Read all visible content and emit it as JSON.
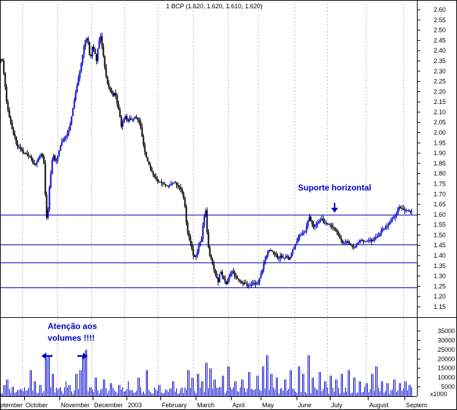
{
  "chart_data": {
    "type": "candlestick",
    "title": "1 BCP (1.620, 1.620, 1.610, 1.620)",
    "price_axis": {
      "ticks": [
        "2.60",
        "2.55",
        "2.50",
        "2.45",
        "2.40",
        "2.35",
        "2.30",
        "2.25",
        "2.20",
        "2.15",
        "2.10",
        "2.05",
        "2.00",
        "1.95",
        "1.90",
        "1.85",
        "1.80",
        "1.75",
        "1.70",
        "1.65",
        "1.60",
        "1.55",
        "1.50",
        "1.45",
        "1.40",
        "1.35",
        "1.30",
        "1.25",
        "1.20",
        "1.15"
      ],
      "range": [
        1.125,
        2.625
      ]
    },
    "volume_axis": {
      "ticks": [
        "35000",
        "30000",
        "25000",
        "20000",
        "15000",
        "10000",
        "5000"
      ],
      "unit_label": "x1000",
      "range": [
        0,
        40000
      ]
    },
    "time_axis": {
      "labels": [
        "ptember",
        "October",
        "November",
        "December",
        "2003",
        "February",
        "March",
        "April",
        "May",
        "June",
        "July",
        "August",
        "Septem"
      ]
    },
    "horizontal_levels": [
      1.6,
      1.455,
      1.365,
      1.245
    ],
    "price_path": [
      [
        0,
        2.36
      ],
      [
        3,
        2.35
      ],
      [
        6,
        2.26
      ],
      [
        9,
        2.15
      ],
      [
        12,
        2.09
      ],
      [
        15,
        2.05
      ],
      [
        18,
        2.0
      ],
      [
        21,
        1.98
      ],
      [
        24,
        1.93
      ],
      [
        27,
        1.93
      ],
      [
        30,
        1.92
      ],
      [
        33,
        1.9
      ],
      [
        36,
        1.9
      ],
      [
        40,
        1.89
      ],
      [
        44,
        1.88
      ],
      [
        48,
        1.84
      ],
      [
        52,
        1.85
      ],
      [
        56,
        1.88
      ],
      [
        60,
        1.9
      ],
      [
        63,
        1.85
      ],
      [
        66,
        1.62
      ],
      [
        68,
        1.55
      ],
      [
        70,
        1.7
      ],
      [
        73,
        1.8
      ],
      [
        76,
        1.9
      ],
      [
        80,
        1.85
      ],
      [
        84,
        1.9
      ],
      [
        88,
        1.95
      ],
      [
        92,
        1.97
      ],
      [
        96,
        1.99
      ],
      [
        100,
        2.02
      ],
      [
        104,
        2.1
      ],
      [
        108,
        2.18
      ],
      [
        112,
        2.25
      ],
      [
        115,
        2.3
      ],
      [
        118,
        2.36
      ],
      [
        121,
        2.42
      ],
      [
        124,
        2.47
      ],
      [
        127,
        2.44
      ],
      [
        130,
        2.35
      ],
      [
        133,
        2.42
      ],
      [
        136,
        2.4
      ],
      [
        139,
        2.35
      ],
      [
        142,
        2.44
      ],
      [
        145,
        2.47
      ],
      [
        148,
        2.4
      ],
      [
        151,
        2.32
      ],
      [
        154,
        2.25
      ],
      [
        157,
        2.22
      ],
      [
        160,
        2.2
      ],
      [
        163,
        2.18
      ],
      [
        166,
        2.2
      ],
      [
        169,
        2.14
      ],
      [
        172,
        2.1
      ],
      [
        175,
        2.03
      ],
      [
        178,
        2.06
      ],
      [
        181,
        2.08
      ],
      [
        184,
        2.05
      ],
      [
        187,
        2.07
      ],
      [
        190,
        2.06
      ],
      [
        193,
        2.07
      ],
      [
        196,
        2.08
      ],
      [
        199,
        2.06
      ],
      [
        202,
        2.05
      ],
      [
        205,
        1.98
      ],
      [
        208,
        1.92
      ],
      [
        211,
        1.88
      ],
      [
        214,
        1.85
      ],
      [
        217,
        1.83
      ],
      [
        220,
        1.8
      ],
      [
        224,
        1.78
      ],
      [
        228,
        1.76
      ],
      [
        232,
        1.76
      ],
      [
        236,
        1.75
      ],
      [
        240,
        1.74
      ],
      [
        244,
        1.74
      ],
      [
        248,
        1.75
      ],
      [
        252,
        1.76
      ],
      [
        256,
        1.74
      ],
      [
        260,
        1.73
      ],
      [
        264,
        1.7
      ],
      [
        267,
        1.64
      ],
      [
        270,
        1.52
      ],
      [
        273,
        1.49
      ],
      [
        276,
        1.45
      ],
      [
        279,
        1.4
      ],
      [
        282,
        1.39
      ],
      [
        285,
        1.42
      ],
      [
        288,
        1.46
      ],
      [
        291,
        1.48
      ],
      [
        294,
        1.58
      ],
      [
        297,
        1.62
      ],
      [
        300,
        1.46
      ],
      [
        303,
        1.4
      ],
      [
        306,
        1.37
      ],
      [
        309,
        1.33
      ],
      [
        312,
        1.3
      ],
      [
        315,
        1.27
      ],
      [
        318,
        1.33
      ],
      [
        321,
        1.3
      ],
      [
        324,
        1.28
      ],
      [
        327,
        1.26
      ],
      [
        330,
        1.29
      ],
      [
        333,
        1.31
      ],
      [
        336,
        1.33
      ],
      [
        339,
        1.3
      ],
      [
        342,
        1.29
      ],
      [
        345,
        1.28
      ],
      [
        348,
        1.27
      ],
      [
        351,
        1.26
      ],
      [
        354,
        1.27
      ],
      [
        357,
        1.25
      ],
      [
        360,
        1.25
      ],
      [
        363,
        1.26
      ],
      [
        366,
        1.27
      ],
      [
        369,
        1.26
      ],
      [
        372,
        1.26
      ],
      [
        375,
        1.29
      ],
      [
        378,
        1.32
      ],
      [
        381,
        1.36
      ],
      [
        384,
        1.39
      ],
      [
        387,
        1.42
      ],
      [
        390,
        1.43
      ],
      [
        393,
        1.42
      ],
      [
        396,
        1.41
      ],
      [
        399,
        1.4
      ],
      [
        402,
        1.38
      ],
      [
        405,
        1.4
      ],
      [
        408,
        1.39
      ],
      [
        411,
        1.39
      ],
      [
        414,
        1.4
      ],
      [
        417,
        1.38
      ],
      [
        420,
        1.4
      ],
      [
        423,
        1.43
      ],
      [
        426,
        1.45
      ],
      [
        429,
        1.47
      ],
      [
        432,
        1.5
      ],
      [
        435,
        1.5
      ],
      [
        438,
        1.51
      ],
      [
        441,
        1.52
      ],
      [
        444,
        1.56
      ],
      [
        447,
        1.59
      ],
      [
        450,
        1.56
      ],
      [
        453,
        1.54
      ],
      [
        456,
        1.55
      ],
      [
        459,
        1.56
      ],
      [
        462,
        1.57
      ],
      [
        465,
        1.58
      ],
      [
        468,
        1.56
      ],
      [
        471,
        1.56
      ],
      [
        474,
        1.55
      ],
      [
        477,
        1.55
      ],
      [
        480,
        1.54
      ],
      [
        483,
        1.53
      ],
      [
        486,
        1.52
      ],
      [
        489,
        1.5
      ],
      [
        492,
        1.48
      ],
      [
        495,
        1.46
      ],
      [
        498,
        1.46
      ],
      [
        501,
        1.47
      ],
      [
        504,
        1.46
      ],
      [
        507,
        1.45
      ],
      [
        510,
        1.44
      ],
      [
        513,
        1.44
      ],
      [
        516,
        1.46
      ],
      [
        519,
        1.47
      ],
      [
        522,
        1.48
      ],
      [
        525,
        1.47
      ],
      [
        528,
        1.47
      ],
      [
        531,
        1.47
      ],
      [
        534,
        1.48
      ],
      [
        537,
        1.47
      ],
      [
        540,
        1.48
      ],
      [
        543,
        1.49
      ],
      [
        546,
        1.49
      ],
      [
        549,
        1.51
      ],
      [
        552,
        1.53
      ],
      [
        555,
        1.53
      ],
      [
        558,
        1.54
      ],
      [
        561,
        1.55
      ],
      [
        564,
        1.57
      ],
      [
        567,
        1.58
      ],
      [
        570,
        1.59
      ],
      [
        573,
        1.6
      ],
      [
        576,
        1.64
      ],
      [
        579,
        1.63
      ],
      [
        582,
        1.63
      ],
      [
        585,
        1.62
      ],
      [
        588,
        1.62
      ],
      [
        591,
        1.62
      ],
      [
        594,
        1.61
      ],
      [
        596,
        1.62
      ]
    ],
    "volume_spikes": [
      [
        6,
        6000
      ],
      [
        10,
        9000
      ],
      [
        18,
        5000
      ],
      [
        44,
        14000
      ],
      [
        50,
        8000
      ],
      [
        58,
        6000
      ],
      [
        66,
        20000
      ],
      [
        70,
        22000
      ],
      [
        76,
        12000
      ],
      [
        95,
        8000
      ],
      [
        100,
        6000
      ],
      [
        110,
        12000
      ],
      [
        116,
        14000
      ],
      [
        120,
        22000
      ],
      [
        124,
        25000
      ],
      [
        138,
        10000
      ],
      [
        150,
        9000
      ],
      [
        160,
        7000
      ],
      [
        172,
        6000
      ],
      [
        185,
        8000
      ],
      [
        200,
        10000
      ],
      [
        212,
        14000
      ],
      [
        230,
        6000
      ],
      [
        250,
        8000
      ],
      [
        272,
        14000
      ],
      [
        278,
        10000
      ],
      [
        286,
        12000
      ],
      [
        292,
        8000
      ],
      [
        298,
        18000
      ],
      [
        304,
        15000
      ],
      [
        310,
        9000
      ],
      [
        322,
        11000
      ],
      [
        330,
        16000
      ],
      [
        340,
        8000
      ],
      [
        350,
        9000
      ],
      [
        360,
        13000
      ],
      [
        372,
        11000
      ],
      [
        380,
        16000
      ],
      [
        386,
        22000
      ],
      [
        392,
        12000
      ],
      [
        400,
        10000
      ],
      [
        412,
        9000
      ],
      [
        420,
        14000
      ],
      [
        432,
        16000
      ],
      [
        438,
        12000
      ],
      [
        446,
        22000
      ],
      [
        452,
        10000
      ],
      [
        462,
        13000
      ],
      [
        470,
        8000
      ],
      [
        478,
        11000
      ],
      [
        486,
        9000
      ],
      [
        494,
        12000
      ],
      [
        504,
        14000
      ],
      [
        512,
        10000
      ],
      [
        520,
        8000
      ],
      [
        530,
        7000
      ],
      [
        538,
        12000
      ],
      [
        544,
        16000
      ],
      [
        552,
        8000
      ],
      [
        560,
        7000
      ],
      [
        570,
        9000
      ],
      [
        578,
        7000
      ],
      [
        586,
        8000
      ],
      [
        592,
        6000
      ]
    ],
    "annotations": {
      "support_label": "Suporte horizontal",
      "volume_note_line1": "Atenção aos",
      "volume_note_line2": "volumes !!!!"
    },
    "colors": {
      "candle_up": "#0000cc",
      "candle_down": "#000000",
      "level_line": "#0000aa",
      "grid": "#888888",
      "annotation": "#0000cc"
    }
  }
}
